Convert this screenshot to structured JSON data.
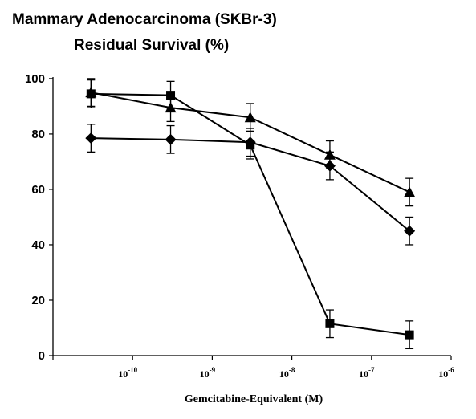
{
  "chart_data": {
    "type": "line",
    "title": "Mammary Adenocarcinoma (SKBr-3)",
    "subtitle": "Residual Survival (%)",
    "xlabel": "Gemcitabine-Equivalent (M)",
    "ylabel": "",
    "x_scale": "log",
    "xlim": [
      1e-11,
      1e-06
    ],
    "ylim": [
      0,
      100
    ],
    "y_ticks": [
      0,
      20,
      40,
      60,
      80,
      100
    ],
    "x_ticks": [
      {
        "value": 1e-10,
        "base": "10",
        "exp": "-10"
      },
      {
        "value": 1e-09,
        "base": "10",
        "exp": "-9"
      },
      {
        "value": 1e-08,
        "base": "10",
        "exp": "-8"
      },
      {
        "value": 1e-07,
        "base": "10",
        "exp": "-7"
      },
      {
        "value": 1e-06,
        "base": "10",
        "exp": "-6"
      }
    ],
    "x": [
      3e-11,
      3e-10,
      3e-09,
      3e-08,
      3e-07
    ],
    "grid": false,
    "legend": "none",
    "series": [
      {
        "marker": "diamond",
        "values": [
          78.5,
          78,
          77,
          68.5,
          45
        ],
        "errors": [
          5,
          5,
          5,
          5,
          5
        ]
      },
      {
        "marker": "square",
        "values": [
          94.5,
          94,
          76,
          11.5,
          7.5
        ],
        "errors": [
          5,
          5,
          5,
          5,
          5
        ]
      },
      {
        "marker": "triangle",
        "values": [
          95,
          89.5,
          86,
          72.5,
          59
        ],
        "errors": [
          5,
          5,
          5,
          5,
          5
        ]
      }
    ]
  }
}
